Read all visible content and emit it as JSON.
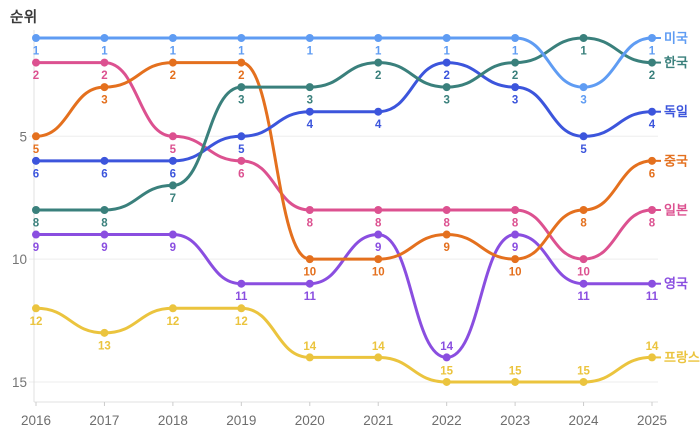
{
  "chart_data": {
    "type": "line",
    "variant": "bump-ranking-chart",
    "title": "순위",
    "ylabel": "순위",
    "xlabel": "",
    "x": [
      "2016",
      "2017",
      "2018",
      "2019",
      "2020",
      "2021",
      "2022",
      "2023",
      "2024",
      "2025"
    ],
    "y_axis": {
      "ticks": [
        5,
        10,
        15
      ],
      "inverted": true,
      "range": [
        1,
        15
      ]
    },
    "grid": "horizontal",
    "legend_position": "right-end-labels",
    "series": [
      {
        "name": "미국",
        "color": "#5F9CF3",
        "values": [
          1,
          1,
          1,
          1,
          1,
          1,
          1,
          1,
          3,
          1
        ]
      },
      {
        "name": "한국",
        "color": "#3A807C",
        "values": [
          8,
          8,
          7,
          3,
          3,
          2,
          3,
          2,
          1,
          2
        ]
      },
      {
        "name": "독일",
        "color": "#3C55DC",
        "values": [
          6,
          6,
          6,
          5,
          4,
          4,
          2,
          3,
          5,
          4
        ]
      },
      {
        "name": "중국",
        "color": "#E4701E",
        "values": [
          5,
          3,
          2,
          2,
          10,
          10,
          9,
          10,
          8,
          6
        ]
      },
      {
        "name": "일본",
        "color": "#DC5190",
        "values": [
          2,
          2,
          5,
          6,
          8,
          8,
          8,
          8,
          10,
          8
        ]
      },
      {
        "name": "영국",
        "color": "#8A4EE0",
        "values": [
          9,
          9,
          9,
          11,
          11,
          9,
          14,
          9,
          11,
          11
        ]
      },
      {
        "name": "프랑스",
        "color": "#EBC43E",
        "values": [
          12,
          13,
          12,
          12,
          14,
          14,
          15,
          15,
          15,
          14
        ]
      }
    ]
  },
  "style": {
    "background": "#ffffff",
    "grid_color": "#eeeeee",
    "axis_color": "#e0e0e0",
    "tick_color": "#cccccc",
    "tick_label_color": "#757575",
    "title_color": "#3a3a3a"
  }
}
